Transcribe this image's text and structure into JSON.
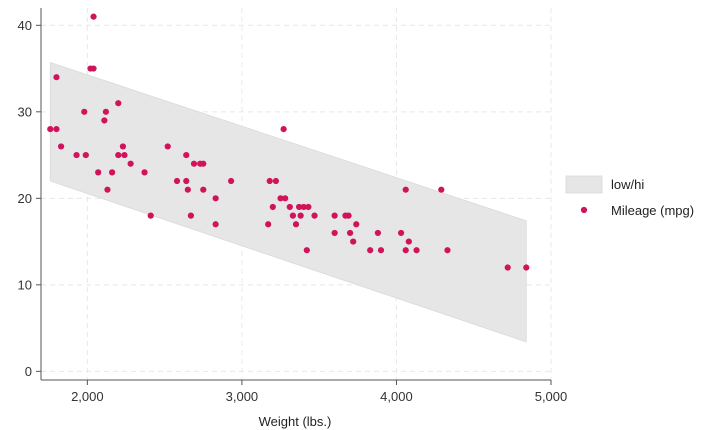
{
  "chart_data": {
    "type": "scatter",
    "title": "",
    "xlabel": "Weight (lbs.)",
    "ylabel": "",
    "xlim": [
      1700,
      5000
    ],
    "ylim": [
      -1,
      42
    ],
    "xticks": [
      2000,
      3000,
      4000,
      5000
    ],
    "xtick_labels": [
      "2,000",
      "3,000",
      "4,000",
      "5,000"
    ],
    "yticks": [
      0,
      10,
      20,
      30,
      40
    ],
    "ytick_labels": [
      "0",
      "10",
      "20",
      "30",
      "40"
    ],
    "grid": true,
    "legend_position": "right",
    "colors": {
      "band": "#e6e6e6",
      "band_edge": "#d9d9d9",
      "points": "#d0135a",
      "grid": "#e8e8e8",
      "axis": "#555555"
    },
    "band": {
      "name": "low/hi",
      "x": [
        1760,
        4840
      ],
      "low": [
        22,
        3.4
      ],
      "high": [
        35.7,
        17.4
      ]
    },
    "series": [
      {
        "name": "Mileage (mpg)",
        "points": [
          [
            1760,
            28
          ],
          [
            1800,
            34
          ],
          [
            1800,
            28
          ],
          [
            1830,
            26
          ],
          [
            1930,
            25
          ],
          [
            1980,
            30
          ],
          [
            1990,
            25
          ],
          [
            2020,
            35
          ],
          [
            2040,
            35
          ],
          [
            2040,
            41
          ],
          [
            2070,
            23
          ],
          [
            2110,
            29
          ],
          [
            2120,
            30
          ],
          [
            2130,
            21
          ],
          [
            2160,
            23
          ],
          [
            2200,
            31
          ],
          [
            2200,
            25
          ],
          [
            2230,
            26
          ],
          [
            2240,
            25
          ],
          [
            2280,
            24
          ],
          [
            2370,
            23
          ],
          [
            2410,
            18
          ],
          [
            2520,
            26
          ],
          [
            2580,
            22
          ],
          [
            2640,
            22
          ],
          [
            2640,
            25
          ],
          [
            2650,
            21
          ],
          [
            2670,
            18
          ],
          [
            2690,
            24
          ],
          [
            2730,
            24
          ],
          [
            2750,
            24
          ],
          [
            2750,
            21
          ],
          [
            2830,
            20
          ],
          [
            2830,
            17
          ],
          [
            2930,
            22
          ],
          [
            3170,
            17
          ],
          [
            3180,
            22
          ],
          [
            3200,
            19
          ],
          [
            3220,
            22
          ],
          [
            3250,
            20
          ],
          [
            3270,
            28
          ],
          [
            3280,
            20
          ],
          [
            3310,
            19
          ],
          [
            3330,
            18
          ],
          [
            3350,
            17
          ],
          [
            3370,
            19
          ],
          [
            3380,
            18
          ],
          [
            3400,
            19
          ],
          [
            3420,
            14
          ],
          [
            3430,
            19
          ],
          [
            3470,
            18
          ],
          [
            3600,
            18
          ],
          [
            3600,
            16
          ],
          [
            3670,
            18
          ],
          [
            3690,
            18
          ],
          [
            3700,
            16
          ],
          [
            3720,
            15
          ],
          [
            3740,
            17
          ],
          [
            3830,
            14
          ],
          [
            3880,
            16
          ],
          [
            3900,
            14
          ],
          [
            4030,
            16
          ],
          [
            4060,
            21
          ],
          [
            4060,
            14
          ],
          [
            4080,
            15
          ],
          [
            4130,
            14
          ],
          [
            4290,
            21
          ],
          [
            4330,
            14
          ],
          [
            4720,
            12
          ],
          [
            4840,
            12
          ]
        ]
      }
    ],
    "legend": [
      {
        "label": "low/hi",
        "kind": "band"
      },
      {
        "label": "Mileage (mpg)",
        "kind": "point"
      }
    ]
  }
}
